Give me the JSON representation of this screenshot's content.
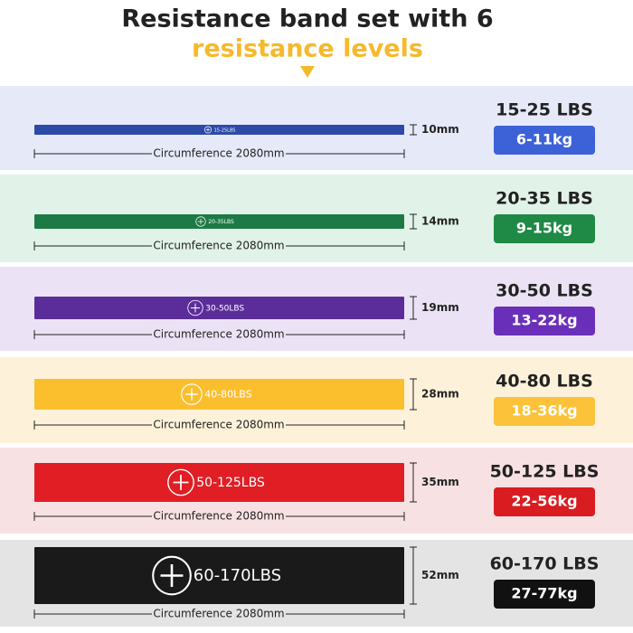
{
  "header": {
    "title": "Resistance band set with 6",
    "subtitle": "resistance levels"
  },
  "rows": [
    {
      "band_label": "15-25LBS",
      "thickness": "10mm",
      "circumference": "Circumference 2080mm",
      "lbs": "15-25 LBS",
      "kg": "6-11kg"
    },
    {
      "band_label": "20-35LBS",
      "thickness": "14mm",
      "circumference": "Circumference 2080mm",
      "lbs": "20-35 LBS",
      "kg": "9-15kg"
    },
    {
      "band_label": "30-50LBS",
      "thickness": "19mm",
      "circumference": "Circumference 2080mm",
      "lbs": "30-50 LBS",
      "kg": "13-22kg"
    },
    {
      "band_label": "40-80LBS",
      "thickness": "28mm",
      "circumference": "Circumference 2080mm",
      "lbs": "40-80 LBS",
      "kg": "18-36kg"
    },
    {
      "band_label": "50-125LBS",
      "thickness": "35mm",
      "circumference": "Circumference 2080mm",
      "lbs": "50-125 LBS",
      "kg": "22-56kg"
    },
    {
      "band_label": "60-170LBS",
      "thickness": "52mm",
      "circumference": "Circumference 2080mm",
      "lbs": "60-170 LBS",
      "kg": "27-77kg"
    }
  ]
}
